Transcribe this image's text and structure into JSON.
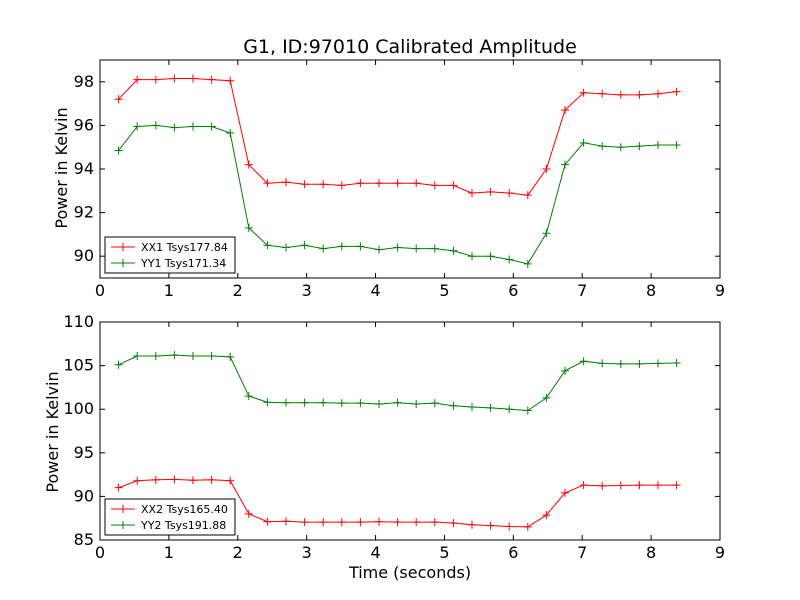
{
  "chart_data": [
    {
      "type": "line",
      "title": "G1, ID:97010 Calibrated Amplitude",
      "xlabel": "",
      "ylabel": "Power in Kelvin",
      "xlim": [
        0,
        9
      ],
      "ylim": [
        89,
        99
      ],
      "x_ticks": [
        "0",
        "1",
        "2",
        "3",
        "4",
        "5",
        "6",
        "7",
        "8",
        "9"
      ],
      "y_ticks": [
        "90",
        "92",
        "94",
        "96",
        "98"
      ],
      "grid": false,
      "legend_position": "lower-left",
      "x": [
        0.27,
        0.54,
        0.81,
        1.08,
        1.35,
        1.62,
        1.89,
        2.16,
        2.43,
        2.7,
        2.97,
        3.24,
        3.51,
        3.78,
        4.05,
        4.32,
        4.59,
        4.86,
        5.13,
        5.4,
        5.67,
        5.94,
        6.21,
        6.48,
        6.75,
        7.02,
        7.29,
        7.56,
        7.83,
        8.1,
        8.37
      ],
      "series": [
        {
          "name": "XX1 Tsys177.84",
          "color": "#ff0000",
          "values": [
            97.2,
            98.1,
            98.1,
            98.15,
            98.15,
            98.1,
            98.05,
            94.2,
            93.35,
            93.4,
            93.3,
            93.3,
            93.25,
            93.35,
            93.35,
            93.35,
            93.35,
            93.25,
            93.25,
            92.9,
            92.95,
            92.9,
            92.8,
            94.0,
            96.7,
            97.5,
            97.45,
            97.4,
            97.4,
            97.45,
            97.55
          ]
        },
        {
          "name": "YY1 Tsys171.34",
          "color": "#008000",
          "values": [
            94.85,
            95.95,
            96.0,
            95.9,
            95.95,
            95.95,
            95.65,
            91.3,
            90.5,
            90.4,
            90.5,
            90.35,
            90.45,
            90.45,
            90.3,
            90.4,
            90.35,
            90.35,
            90.25,
            90.0,
            90.0,
            89.85,
            89.65,
            91.05,
            94.2,
            95.2,
            95.05,
            95.0,
            95.05,
            95.1,
            95.1
          ]
        }
      ]
    },
    {
      "type": "line",
      "title": "",
      "xlabel": "Time (seconds)",
      "ylabel": "Power in Kelvin",
      "xlim": [
        0,
        9
      ],
      "ylim": [
        85,
        110
      ],
      "x_ticks": [
        "0",
        "1",
        "2",
        "3",
        "4",
        "5",
        "6",
        "7",
        "8",
        "9"
      ],
      "y_ticks": [
        "85",
        "90",
        "95",
        "100",
        "105",
        "110"
      ],
      "grid": false,
      "legend_position": "lower-left",
      "x": [
        0.27,
        0.54,
        0.81,
        1.08,
        1.35,
        1.62,
        1.89,
        2.16,
        2.43,
        2.7,
        2.97,
        3.24,
        3.51,
        3.78,
        4.05,
        4.32,
        4.59,
        4.86,
        5.13,
        5.4,
        5.67,
        5.94,
        6.21,
        6.48,
        6.75,
        7.02,
        7.29,
        7.56,
        7.83,
        8.1,
        8.37
      ],
      "series": [
        {
          "name": "XX2 Tsys165.40",
          "color": "#ff0000",
          "values": [
            91.0,
            91.8,
            91.9,
            91.95,
            91.85,
            91.9,
            91.8,
            88.0,
            87.1,
            87.15,
            87.05,
            87.05,
            87.05,
            87.05,
            87.1,
            87.05,
            87.05,
            87.05,
            86.95,
            86.75,
            86.65,
            86.55,
            86.5,
            87.85,
            90.4,
            91.3,
            91.2,
            91.25,
            91.3,
            91.3,
            91.3
          ]
        },
        {
          "name": "YY2 Tsys191.88",
          "color": "#008000",
          "values": [
            105.1,
            106.1,
            106.1,
            106.2,
            106.1,
            106.1,
            106.0,
            101.5,
            100.8,
            100.75,
            100.75,
            100.75,
            100.7,
            100.7,
            100.6,
            100.75,
            100.6,
            100.7,
            100.4,
            100.25,
            100.15,
            100.0,
            99.85,
            101.3,
            104.4,
            105.5,
            105.25,
            105.2,
            105.2,
            105.25,
            105.3
          ]
        }
      ]
    }
  ]
}
